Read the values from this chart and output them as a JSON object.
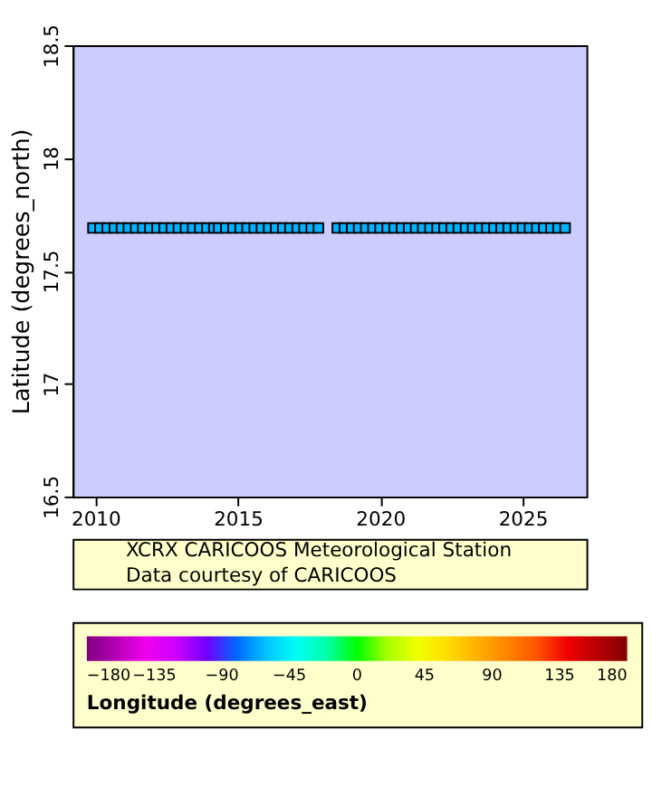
{
  "chart_data": {
    "type": "scatter",
    "ylabel": "Latitude (degrees_north)",
    "clabel": "Longitude (degrees_east)",
    "annotations": [
      "XCRX CARICOOS Meteorological Station",
      "Data courtesy of CARICOOS"
    ],
    "x": [
      "2009-12",
      "2010-03",
      "2010-06",
      "2010-09",
      "2010-12",
      "2011-03",
      "2011-06",
      "2011-09",
      "2011-12",
      "2012-03",
      "2012-06",
      "2012-09",
      "2012-12",
      "2013-03",
      "2013-06",
      "2013-09",
      "2013-12",
      "2014-03",
      "2014-05",
      "2014-08",
      "2014-11",
      "2015-02",
      "2015-05",
      "2015-08",
      "2015-11",
      "2016-02",
      "2016-05",
      "2016-08",
      "2016-11",
      "2017-02",
      "2017-05",
      "2017-08",
      "2017-11",
      "2018-07",
      "2018-10",
      "2019-01",
      "2019-04",
      "2019-07",
      "2019-10",
      "2020-01",
      "2020-04",
      "2020-07",
      "2020-10",
      "2021-01",
      "2021-04",
      "2021-07",
      "2021-10",
      "2022-01",
      "2022-04",
      "2022-07",
      "2022-10",
      "2023-01",
      "2023-04",
      "2023-07",
      "2023-10",
      "2024-01",
      "2024-04",
      "2024-07",
      "2024-10",
      "2025-01",
      "2025-04",
      "2025-07",
      "2025-10",
      "2026-01",
      "2026-04",
      "2026-07"
    ],
    "values": [
      17.69,
      17.69,
      17.69,
      17.69,
      17.69,
      17.69,
      17.69,
      17.69,
      17.69,
      17.69,
      17.69,
      17.69,
      17.69,
      17.69,
      17.69,
      17.69,
      17.69,
      17.69,
      17.69,
      17.69,
      17.69,
      17.69,
      17.69,
      17.69,
      17.69,
      17.69,
      17.69,
      17.69,
      17.69,
      17.69,
      17.69,
      17.69,
      17.69,
      17.69,
      17.69,
      17.69,
      17.69,
      17.69,
      17.69,
      17.69,
      17.69,
      17.69,
      17.69,
      17.69,
      17.69,
      17.69,
      17.69,
      17.69,
      17.69,
      17.69,
      17.69,
      17.69,
      17.69,
      17.69,
      17.69,
      17.69,
      17.69,
      17.69,
      17.69,
      17.69,
      17.69,
      17.69,
      17.69,
      17.69,
      17.69,
      17.69
    ],
    "cvalues": [
      -64.7,
      -64.7,
      -64.7,
      -64.7,
      -64.7,
      -64.7,
      -64.7,
      -64.7,
      -64.7,
      -64.7,
      -64.7,
      -64.7,
      -64.7,
      -64.7,
      -64.7,
      -64.7,
      -64.7,
      -64.7,
      -64.7,
      -64.7,
      -64.7,
      -64.7,
      -64.7,
      -64.7,
      -64.7,
      -64.7,
      -64.7,
      -64.7,
      -64.7,
      -64.7,
      -64.7,
      -64.7,
      -64.7,
      -64.7,
      -64.7,
      -64.7,
      -64.7,
      -64.7,
      -64.7,
      -64.7,
      -64.7,
      -64.7,
      -64.7,
      -64.7,
      -64.7,
      -64.7,
      -64.7,
      -64.7,
      -64.7,
      -64.7,
      -64.7,
      -64.7,
      -64.7,
      -64.7,
      -64.7,
      -64.7,
      -64.7,
      -64.7,
      -64.7,
      -64.7,
      -64.7,
      -64.7,
      -64.7,
      -64.7,
      -64.7,
      -64.7
    ],
    "xlim": [
      "2009-03-15",
      "2027-04-01"
    ],
    "xticks": [
      "2010",
      "2015",
      "2020",
      "2025"
    ],
    "ylim": [
      16.5,
      18.5
    ],
    "yticks": [
      16.5,
      17,
      17.5,
      18,
      18.5
    ],
    "clim": [
      -180,
      180
    ],
    "cticks": [
      -180,
      -135,
      -90,
      -45,
      0,
      45,
      90,
      135,
      180
    ],
    "marker": "square",
    "grid": false
  }
}
